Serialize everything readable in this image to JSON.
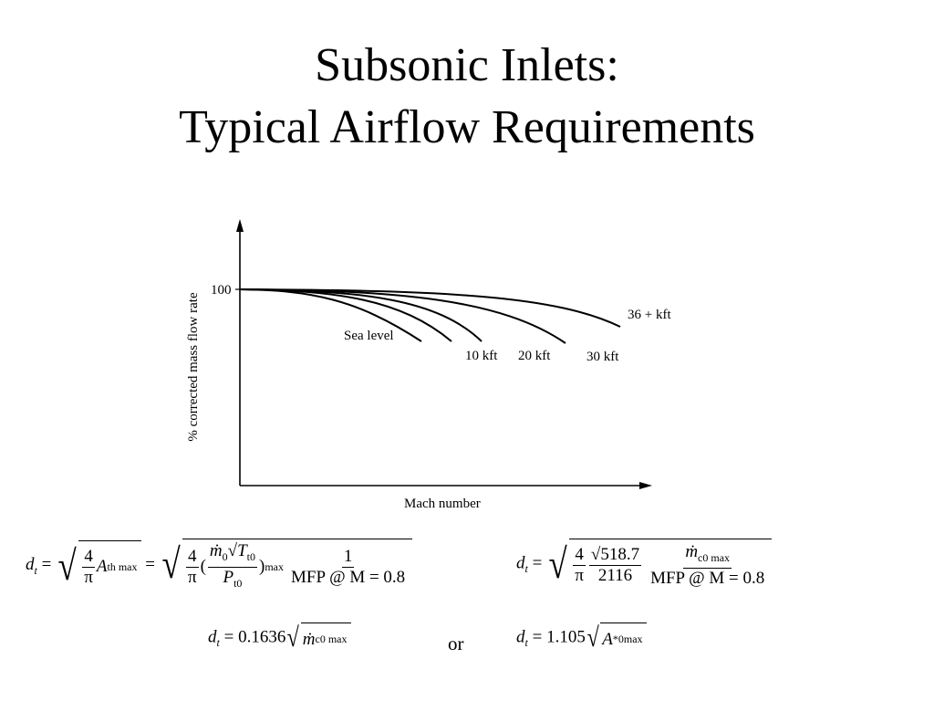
{
  "title": {
    "line1": "Subsonic Inlets:",
    "line2": "Typical Airflow Requirements"
  },
  "chart_data": {
    "type": "line",
    "xlabel": "Mach number",
    "ylabel": "% corrected mass flow rate",
    "y_tick": "100",
    "series": [
      {
        "name": "Sea level",
        "label_text": "Sea level"
      },
      {
        "name": "10 kft",
        "label_text": "10 kft"
      },
      {
        "name": "20 kft",
        "label_text": "20 kft"
      },
      {
        "name": "30 kft",
        "label_text": "30 kft"
      },
      {
        "name": "36 + kft",
        "label_text": "36 + kft"
      }
    ]
  },
  "equations": {
    "eq1_lhs": "d",
    "eq1_lhs_sub": "t",
    "eq2_const": "0.1636",
    "eq3_const": "1.105",
    "or_text": "or",
    "num4": "4",
    "pi": "π",
    "sqrt_5187": "518.7",
    "num2116": "2116",
    "num1": "1",
    "mfp_label": "MFP @ M = 0.8",
    "A_th_max": "th max",
    "m0": "ṁ",
    "c0max": "c0 max",
    "Pt0": "P",
    "Tt0": "T",
    "A_star": "A",
    "zero_max": "0max",
    "star": "*"
  }
}
